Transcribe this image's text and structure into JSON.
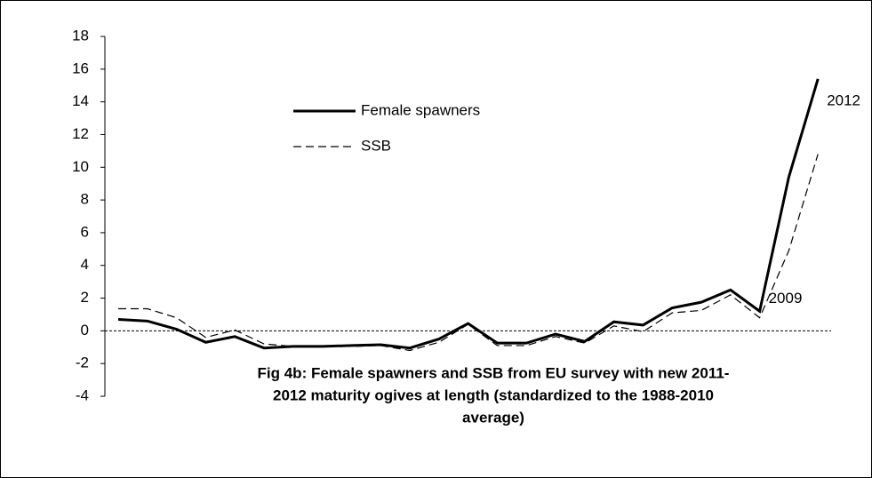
{
  "chart_data": {
    "type": "line",
    "title": [
      "Fig  4b: Female spawners and SSB from EU survey with new 2011-",
      "2012 maturity ogives at length (standardized to the 1988-2010",
      "average)"
    ],
    "categories": [
      null,
      null,
      null,
      null,
      null,
      null,
      null,
      null,
      null,
      null,
      null,
      null,
      null,
      null,
      null,
      null,
      null,
      null,
      null,
      null,
      null,
      null,
      null,
      null,
      null
    ],
    "series": [
      {
        "name": "Female spawners",
        "color": "#000000",
        "dash": false,
        "values": [
          0.7,
          0.6,
          0.1,
          -0.7,
          -0.35,
          -1.05,
          -0.95,
          -0.95,
          -0.9,
          -0.85,
          -1.05,
          -0.5,
          0.45,
          -0.75,
          -0.75,
          -0.2,
          -0.65,
          0.55,
          0.35,
          1.4,
          1.75,
          2.5,
          1.2,
          9.4,
          15.4
        ]
      },
      {
        "name": "SSB",
        "color": "#000000",
        "dash": true,
        "values": [
          1.35,
          1.35,
          0.8,
          -0.4,
          0.05,
          -0.8,
          -0.95,
          -0.95,
          -0.95,
          -0.9,
          -1.2,
          -0.7,
          0.4,
          -0.9,
          -0.9,
          -0.35,
          -0.75,
          0.3,
          -0.05,
          1.1,
          1.25,
          2.2,
          0.8,
          4.9,
          10.8
        ]
      }
    ],
    "annotations": [
      {
        "text": "2009",
        "index": 22
      },
      {
        "text": "2012",
        "index": 24
      }
    ],
    "reference_line": 0,
    "ylim": [
      -4,
      18
    ],
    "yticks": [
      -4,
      -2,
      0,
      2,
      4,
      6,
      8,
      10,
      12,
      14,
      16,
      18
    ]
  }
}
